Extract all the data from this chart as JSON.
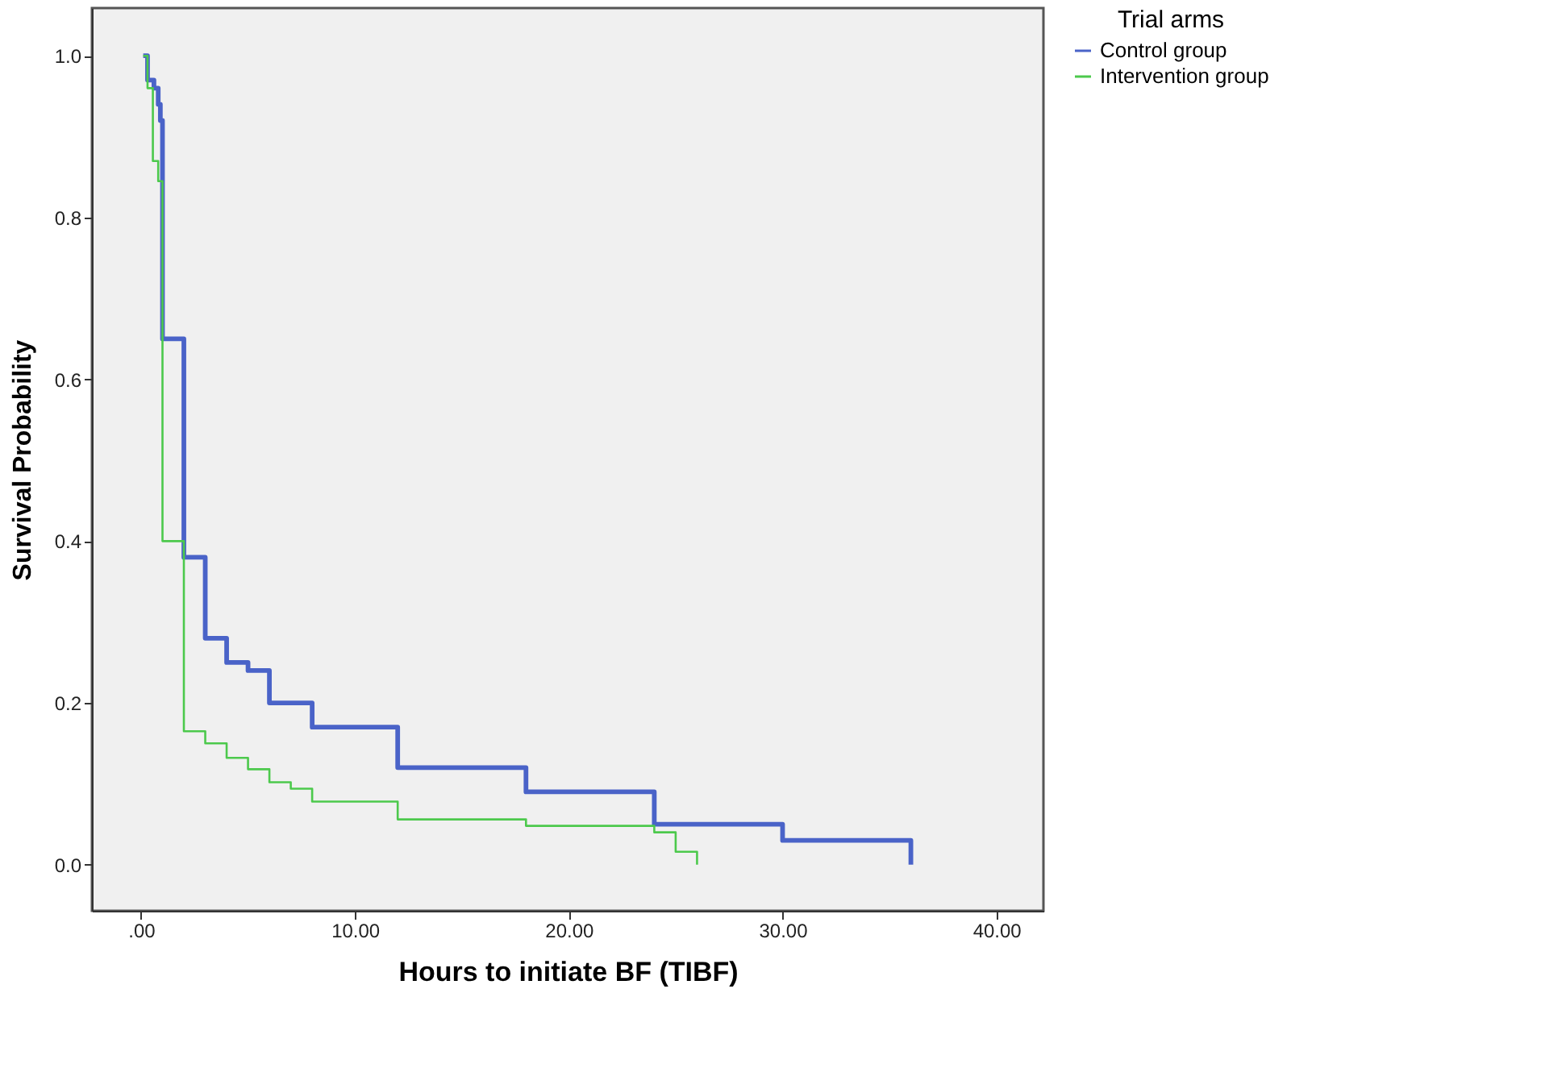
{
  "chart_data": {
    "type": "step",
    "xlabel": "Hours to initiate BF (TIBF)",
    "ylabel": "Survival Probability",
    "legend_title": "Trial arms",
    "legend": "top right",
    "grid": false,
    "xlim": [
      -2.3,
      42.2
    ],
    "ylim": [
      -0.057,
      1.059
    ],
    "xticks": [
      {
        "value": 0,
        "label": ".00"
      },
      {
        "value": 10,
        "label": "10.00"
      },
      {
        "value": 20,
        "label": "20.00"
      },
      {
        "value": 30,
        "label": "30.00"
      },
      {
        "value": 40,
        "label": "40.00"
      }
    ],
    "yticks": [
      {
        "value": 0,
        "label": "0.0"
      },
      {
        "value": 0.2,
        "label": "0.2"
      },
      {
        "value": 0.4,
        "label": "0.4"
      },
      {
        "value": 0.6,
        "label": "0.6"
      },
      {
        "value": 0.8,
        "label": "0.8"
      },
      {
        "value": 1.0,
        "label": "1.0"
      }
    ],
    "series": [
      {
        "name": "Control group",
        "color": "#4a63c8",
        "x": [
          0.1,
          0.3,
          0.6,
          0.8,
          0.9,
          1.0,
          2.0,
          3.0,
          4.0,
          5.0,
          6.0,
          8.0,
          12.0,
          18.0,
          24.0,
          30.0,
          36.0
        ],
        "values": [
          1.0,
          0.97,
          0.96,
          0.94,
          0.92,
          0.65,
          0.38,
          0.28,
          0.25,
          0.24,
          0.2,
          0.17,
          0.12,
          0.09,
          0.05,
          0.03,
          0.0
        ]
      },
      {
        "name": "Intervention group",
        "color": "#4cc94c",
        "x": [
          0.1,
          0.3,
          0.55,
          0.8,
          1.0,
          2.0,
          3.0,
          4.0,
          5.0,
          6.0,
          7.0,
          8.0,
          12.0,
          18.0,
          24.0,
          25.0,
          26.0
        ],
        "values": [
          1.0,
          0.96,
          0.87,
          0.845,
          0.4,
          0.165,
          0.15,
          0.132,
          0.118,
          0.102,
          0.094,
          0.078,
          0.056,
          0.048,
          0.04,
          0.016,
          0.0
        ]
      }
    ]
  }
}
